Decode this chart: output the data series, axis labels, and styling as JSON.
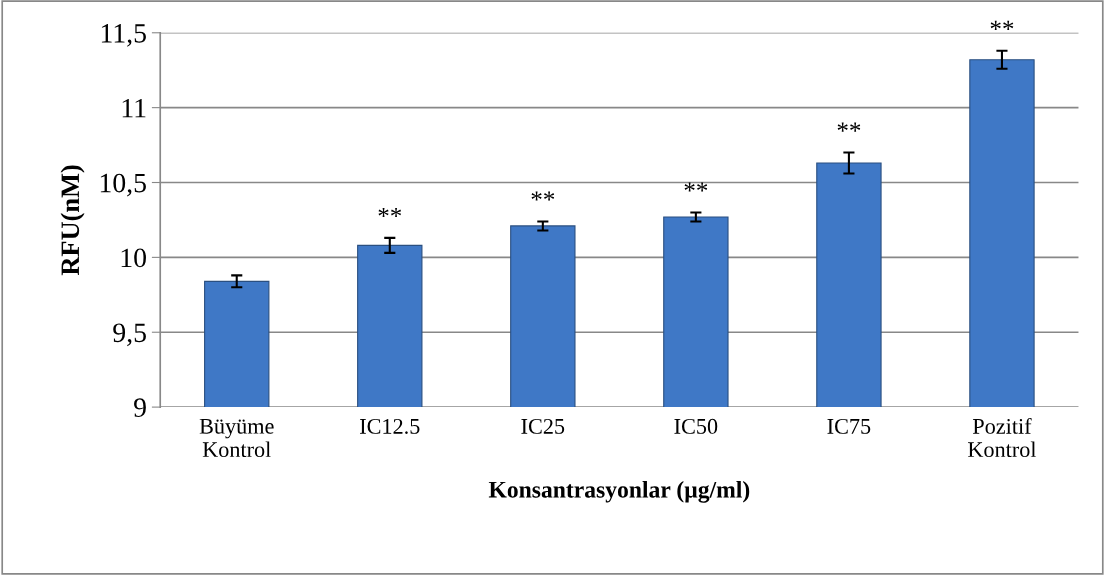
{
  "chart_data": {
    "type": "bar",
    "xlabel": "Konsantrasyonlar (µg/ml)",
    "ylabel": "RFU(nM)",
    "categories": [
      "Büyüme\nKontrol",
      "IC12.5",
      "IC25",
      "IC50",
      "IC75",
      "Pozitif\nKontrol"
    ],
    "values": [
      9.84,
      10.08,
      10.21,
      10.27,
      10.63,
      11.32
    ],
    "errors": [
      0.04,
      0.05,
      0.03,
      0.03,
      0.07,
      0.06
    ],
    "color": "#3f78c6",
    "ylim": [
      9,
      11.5
    ],
    "yticks": [
      9,
      {
        "value": 9.5,
        "label": "9,5"
      },
      10,
      {
        "value": 10.5,
        "label": "10,5"
      },
      11,
      {
        "value": 11.5,
        "label": "11,5"
      }
    ],
    "grid": "y",
    "annotations": [
      {
        "text": "**",
        "x": "IC12.5",
        "y": 10.13
      },
      {
        "text": "**",
        "x": "IC25",
        "y": 10.24
      },
      {
        "text": "**",
        "x": "IC50",
        "y": 10.3
      },
      {
        "text": "**",
        "x": "IC75",
        "y": 10.7
      },
      {
        "text": "**",
        "x": "Pozitif\nKontrol",
        "y": 11.38
      }
    ]
  }
}
